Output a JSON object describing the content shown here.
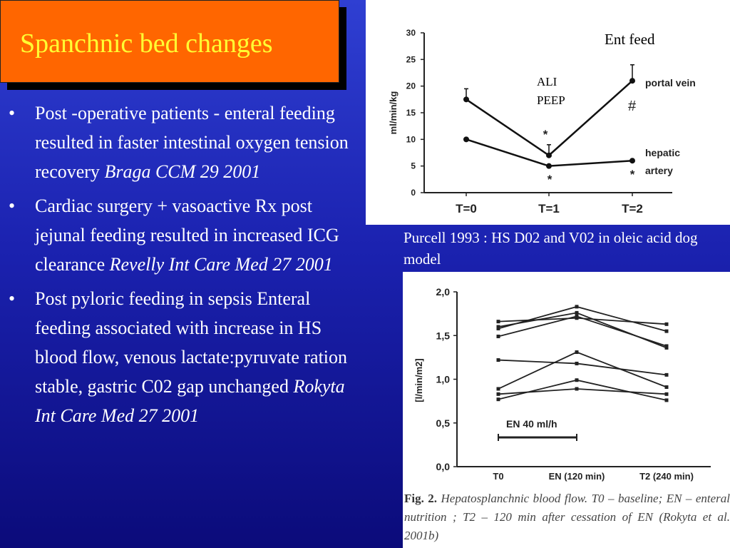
{
  "slide": {
    "title": "Spanchnic bed changes",
    "bullets": [
      {
        "bullet": "•",
        "text": "Post -operative patients - enteral feeding resulted in faster intestinal oxygen tension recovery ",
        "citation": "Braga CCM 29 2001"
      },
      {
        "bullet": "•",
        "text": "Cardiac surgery + vasoactive Rx post jejunal feeding resulted in increased ICG clearance ",
        "citation": "Revelly Int Care Med  27  2001"
      },
      {
        "bullet": "•",
        "text": "Post pyloric feeding in sepsis Enteral feeding associated with increase in HS blood flow, venous lactate:pyruvate ration stable, gastric C02 gap unchanged  ",
        "citation": "Rokyta  Int Care Med  27  2001"
      }
    ],
    "caption_top": "Purcell 1993 : HS D02 and V02 in oleic acid dog model",
    "caption_bottom": {
      "label": "Fig. 2.",
      "text": "Hepatosplanchnic blood flow. T0 – baseline; EN – enteral nutrition ; T2 – 120 min after cessation of EN (Rokyta et al. 2001b)"
    }
  },
  "chart_data": [
    {
      "type": "line",
      "ylabel": "ml/min/kg",
      "categories": [
        "T=0",
        "T=1",
        "T=2"
      ],
      "yticks": [
        "0",
        "5",
        "10",
        "15",
        "20",
        "25",
        "30"
      ],
      "ylim": [
        0,
        30
      ],
      "series": [
        {
          "name": "portal vein",
          "values": [
            17.5,
            7,
            21
          ],
          "errors": [
            2,
            2,
            3
          ]
        },
        {
          "name": "hepatic artery",
          "values": [
            10,
            5,
            6
          ]
        }
      ],
      "annotations": {
        "ent_feed": "Ent feed",
        "ali": "ALI",
        "peep": "PEEP",
        "star": "*",
        "hash": "#"
      },
      "legend": {
        "portal": "portal vein",
        "hepatic_1": "hepatic",
        "hepatic_2": "artery"
      }
    },
    {
      "type": "line",
      "ylabel": "[l/min/m2]",
      "categories": [
        "T0",
        "EN (120 min)",
        "T2 (240 min)"
      ],
      "yticks": [
        "0,0",
        "0,5",
        "1,0",
        "1,5",
        "2,0"
      ],
      "ylim": [
        0,
        2.0
      ],
      "series": [
        {
          "values": [
            1.66,
            1.7,
            1.63
          ]
        },
        {
          "values": [
            1.58,
            1.83,
            1.55
          ]
        },
        {
          "values": [
            1.6,
            1.76,
            1.36
          ]
        },
        {
          "values": [
            1.49,
            1.72,
            1.38
          ]
        },
        {
          "values": [
            1.22,
            1.18,
            1.05
          ]
        },
        {
          "values": [
            0.89,
            1.31,
            0.91
          ]
        },
        {
          "values": [
            0.77,
            0.99,
            0.76
          ]
        },
        {
          "values": [
            0.83,
            0.89,
            0.83
          ]
        }
      ],
      "en_bar_label": "EN 40 ml/h"
    }
  ]
}
